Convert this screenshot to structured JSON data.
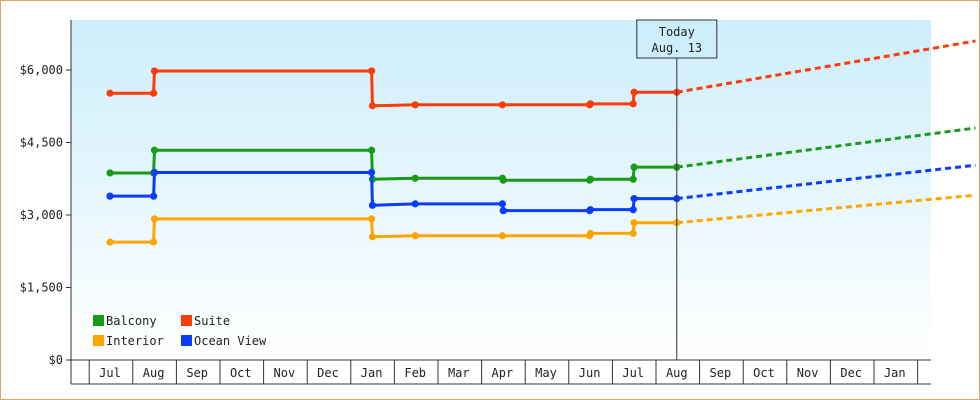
{
  "chart_data": {
    "type": "line",
    "title": "",
    "xlabel": "",
    "ylabel": "",
    "ylim": [
      0,
      6000
    ],
    "y_ticks": [
      "$0",
      "$1,500",
      "$3,000",
      "$4,500",
      "$6,000"
    ],
    "y_tick_values": [
      0,
      1500,
      3000,
      4500,
      6000
    ],
    "x_tick_labels": [
      "Jul",
      "Aug",
      "Sep",
      "Oct",
      "Nov",
      "Dec",
      "Jan",
      "Feb",
      "Mar",
      "Apr",
      "May",
      "Jun",
      "Jul",
      "Aug",
      "Sep",
      "Oct",
      "Nov",
      "Dec",
      "Jan"
    ],
    "today": {
      "line1": "Today",
      "line2": "Aug. 13",
      "index": 13
    },
    "grid": false,
    "legend_placement": "bottom-left",
    "series": [
      {
        "name": "Balcony",
        "color": "#1a9a1a",
        "actual": [
          [
            0,
            3870
          ],
          [
            1,
            3870
          ],
          [
            1.02,
            4340
          ],
          [
            6,
            4340
          ],
          [
            6.02,
            3740
          ],
          [
            7,
            3760
          ],
          [
            9,
            3760
          ],
          [
            9.02,
            3720
          ],
          [
            11,
            3720
          ],
          [
            11.02,
            3740
          ],
          [
            12,
            3740
          ],
          [
            12.02,
            3990
          ],
          [
            13,
            3990
          ]
        ],
        "forecast": [
          [
            13,
            3990
          ],
          [
            19.85,
            4800
          ]
        ]
      },
      {
        "name": "Suite",
        "color": "#ff3b0a",
        "actual": [
          [
            0,
            5520
          ],
          [
            1,
            5520
          ],
          [
            1.02,
            5980
          ],
          [
            6,
            5980
          ],
          [
            6.02,
            5260
          ],
          [
            7,
            5280
          ],
          [
            9,
            5280
          ],
          [
            11,
            5280
          ],
          [
            11.02,
            5300
          ],
          [
            12,
            5300
          ],
          [
            12.02,
            5540
          ],
          [
            13,
            5540
          ]
        ],
        "forecast": [
          [
            13,
            5540
          ],
          [
            19.85,
            6600
          ]
        ]
      },
      {
        "name": "Interior",
        "color": "#ffa500",
        "actual": [
          [
            0,
            2440
          ],
          [
            1,
            2440
          ],
          [
            1.02,
            2920
          ],
          [
            6,
            2920
          ],
          [
            6.02,
            2550
          ],
          [
            7,
            2570
          ],
          [
            9,
            2570
          ],
          [
            11,
            2570
          ],
          [
            11.02,
            2620
          ],
          [
            12,
            2620
          ],
          [
            12.02,
            2840
          ],
          [
            13,
            2840
          ]
        ],
        "forecast": [
          [
            13,
            2840
          ],
          [
            19.85,
            3410
          ]
        ]
      },
      {
        "name": "Ocean View",
        "color": "#0a3cff",
        "actual": [
          [
            0,
            3390
          ],
          [
            1,
            3390
          ],
          [
            1.02,
            3880
          ],
          [
            6,
            3880
          ],
          [
            6.02,
            3200
          ],
          [
            7,
            3230
          ],
          [
            9,
            3230
          ],
          [
            9.02,
            3090
          ],
          [
            11,
            3090
          ],
          [
            11.02,
            3110
          ],
          [
            12,
            3110
          ],
          [
            12.02,
            3340
          ],
          [
            13,
            3340
          ]
        ],
        "forecast": [
          [
            13,
            3340
          ],
          [
            19.85,
            4030
          ]
        ]
      }
    ]
  }
}
